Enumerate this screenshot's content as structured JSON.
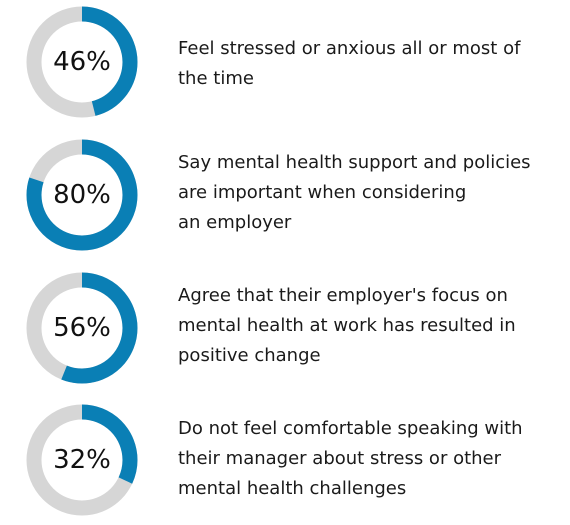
{
  "colors": {
    "accent": "#0a7fb5",
    "track": "#d6d6d6",
    "text": "#1a1a1a"
  },
  "chart_data": {
    "type": "pie",
    "stats": [
      {
        "value": 46,
        "label": "46%",
        "text_lines": [
          "Feel stressed or anxious all or most of",
          "the time"
        ]
      },
      {
        "value": 80,
        "label": "80%",
        "text_lines": [
          "Say mental health support and policies",
          "are important when considering",
          "an employer"
        ]
      },
      {
        "value": 56,
        "label": "56%",
        "text_lines": [
          "Agree that their employer's focus on",
          "mental health at work has resulted in",
          "positive change"
        ]
      },
      {
        "value": 32,
        "label": "32%",
        "text_lines": [
          "Do not feel comfortable speaking with",
          "their manager about stress or other",
          "mental health challenges"
        ]
      }
    ]
  }
}
